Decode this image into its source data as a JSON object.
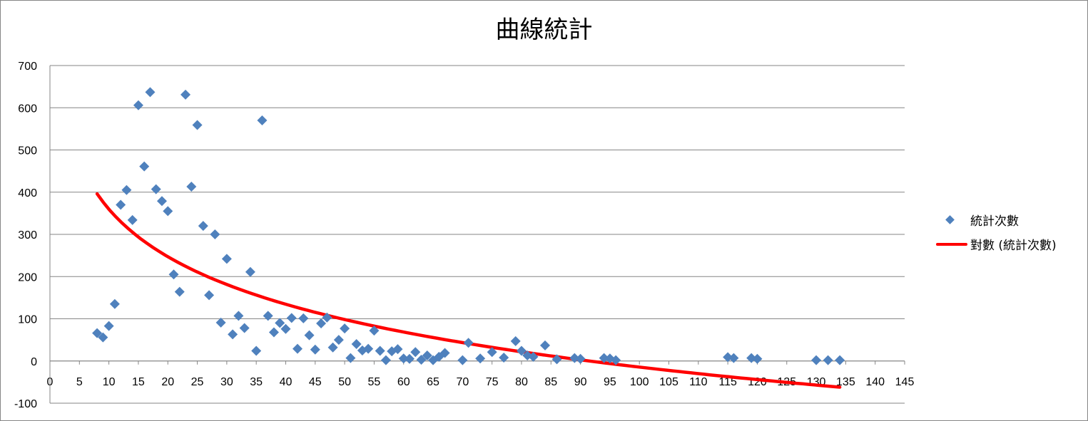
{
  "chart_data": {
    "type": "scatter",
    "title": "曲線統計",
    "xlabel": "",
    "ylabel": "",
    "xlim": [
      0,
      145
    ],
    "ylim": [
      -100,
      700
    ],
    "x_ticks": [
      "0",
      "5",
      "10",
      "15",
      "20",
      "25",
      "30",
      "35",
      "40",
      "45",
      "50",
      "55",
      "60",
      "65",
      "70",
      "75",
      "80",
      "85",
      "90",
      "95",
      "100",
      "105",
      "110",
      "115",
      "120",
      "125",
      "130",
      "135",
      "140",
      "145"
    ],
    "y_ticks": [
      "-100",
      "0",
      "100",
      "200",
      "300",
      "400",
      "500",
      "600",
      "700"
    ],
    "grid": true,
    "legend_position": "right",
    "series": [
      {
        "name": "統計次數",
        "marker": "diamond",
        "color": "#4f81bd",
        "points": [
          [
            8,
            66
          ],
          [
            9,
            56
          ],
          [
            10,
            83
          ],
          [
            11,
            135
          ],
          [
            12,
            370
          ],
          [
            13,
            405
          ],
          [
            14,
            334
          ],
          [
            15,
            606
          ],
          [
            16,
            461
          ],
          [
            17,
            637
          ],
          [
            18,
            407
          ],
          [
            19,
            379
          ],
          [
            20,
            355
          ],
          [
            21,
            205
          ],
          [
            22,
            164
          ],
          [
            23,
            631
          ],
          [
            24,
            413
          ],
          [
            25,
            559
          ],
          [
            26,
            320
          ],
          [
            27,
            156
          ],
          [
            28,
            300
          ],
          [
            29,
            91
          ],
          [
            30,
            242
          ],
          [
            31,
            63
          ],
          [
            32,
            107
          ],
          [
            33,
            78
          ],
          [
            34,
            211
          ],
          [
            35,
            24
          ],
          [
            36,
            570
          ],
          [
            37,
            107
          ],
          [
            38,
            68
          ],
          [
            39,
            90
          ],
          [
            40,
            76
          ],
          [
            41,
            102
          ],
          [
            42,
            29
          ],
          [
            43,
            101
          ],
          [
            44,
            61
          ],
          [
            45,
            27
          ],
          [
            46,
            89
          ],
          [
            47,
            103
          ],
          [
            48,
            32
          ],
          [
            49,
            50
          ],
          [
            50,
            77
          ],
          [
            51,
            7
          ],
          [
            52,
            40
          ],
          [
            53,
            25
          ],
          [
            54,
            29
          ],
          [
            55,
            72
          ],
          [
            56,
            24
          ],
          [
            57,
            2
          ],
          [
            58,
            23
          ],
          [
            59,
            28
          ],
          [
            60,
            6
          ],
          [
            61,
            5
          ],
          [
            62,
            21
          ],
          [
            63,
            3
          ],
          [
            64,
            13
          ],
          [
            65,
            2
          ],
          [
            66,
            10
          ],
          [
            67,
            19
          ],
          [
            70,
            2
          ],
          [
            71,
            43
          ],
          [
            73,
            6
          ],
          [
            75,
            21
          ],
          [
            77,
            8
          ],
          [
            79,
            47
          ],
          [
            80,
            24
          ],
          [
            81,
            13
          ],
          [
            82,
            10
          ],
          [
            84,
            37
          ],
          [
            86,
            4
          ],
          [
            89,
            7
          ],
          [
            90,
            5
          ],
          [
            94,
            7
          ],
          [
            95,
            6
          ],
          [
            96,
            2
          ],
          [
            115,
            9
          ],
          [
            116,
            7
          ],
          [
            119,
            7
          ],
          [
            120,
            5
          ],
          [
            130,
            2
          ],
          [
            132,
            2
          ],
          [
            134,
            2
          ]
        ]
      },
      {
        "name": "對數 (統計次數)",
        "type": "log-trendline",
        "color": "#ff0000",
        "x_start": 8,
        "x_end": 134,
        "y_start": 396,
        "y_end": -62
      }
    ]
  }
}
